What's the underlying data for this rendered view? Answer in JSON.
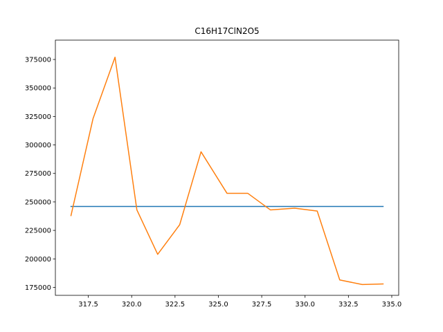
{
  "chart_data": {
    "type": "line",
    "title": "C16H17ClN2O5",
    "xlabel": "",
    "ylabel": "",
    "xlim": [
      315.6,
      335.4
    ],
    "ylim": [
      168000,
      392000
    ],
    "xticks": [
      317.5,
      320.0,
      322.5,
      325.0,
      327.5,
      330.0,
      332.5,
      335.0
    ],
    "xtick_labels": [
      "317.5",
      "320.0",
      "322.5",
      "325.0",
      "327.5",
      "330.0",
      "332.5",
      "335.0"
    ],
    "yticks": [
      175000,
      200000,
      225000,
      250000,
      275000,
      300000,
      325000,
      350000,
      375000
    ],
    "ytick_labels": [
      "175000",
      "200000",
      "225000",
      "250000",
      "275000",
      "300000",
      "325000",
      "350000",
      "375000"
    ],
    "grid": false,
    "series": [
      {
        "color": "#1f77b4",
        "x": [
          316.5,
          334.5
        ],
        "y": [
          246000,
          246000
        ]
      },
      {
        "color": "#ff7f0e",
        "x": [
          316.5,
          317.77,
          319.04,
          320.3,
          321.5,
          322.77,
          324.0,
          325.5,
          326.7,
          328.0,
          329.4,
          330.7,
          332.0,
          333.3,
          334.5
        ],
        "y": [
          238000,
          323000,
          377000,
          243000,
          204000,
          230000,
          294000,
          257500,
          257500,
          243000,
          244500,
          242000,
          181500,
          177500,
          178000
        ]
      }
    ]
  }
}
